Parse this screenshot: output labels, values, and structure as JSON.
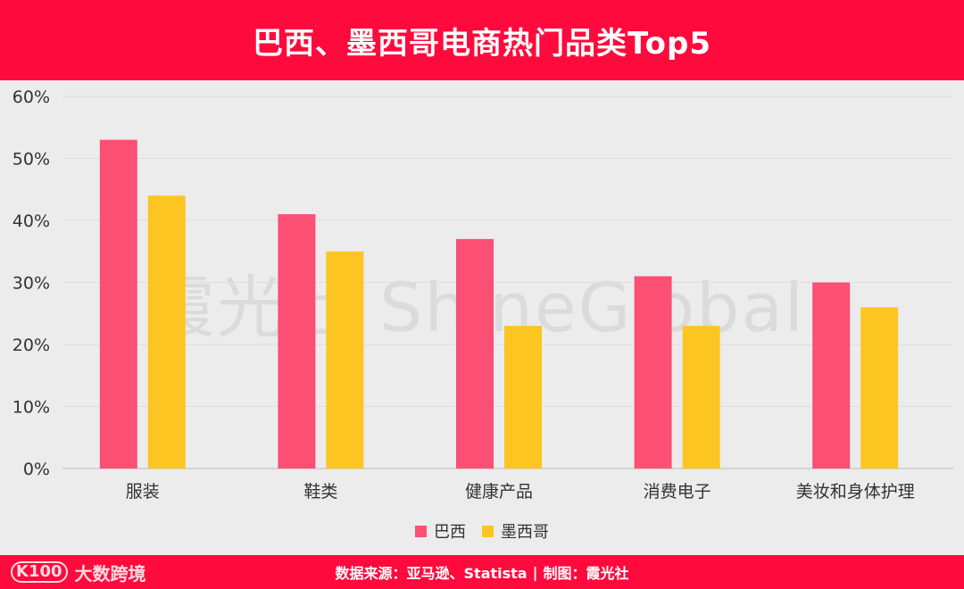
{
  "header": {
    "title": "巴西、墨西哥电商热门品类Top5"
  },
  "watermark": {
    "text": "霞光社 ShineGlobal"
  },
  "footer": {
    "logo_mark": "K100",
    "logo_text": "大数跨境",
    "source": "数据来源：亚马逊、Statista",
    "separator": "|",
    "credit": "制图：霞光社"
  },
  "colors": {
    "brand_red": "#ff0a3c",
    "series_brazil": "#fb4f74",
    "series_mexico": "#fcc522",
    "background": "#ececec"
  },
  "chart_data": {
    "type": "bar",
    "categories": [
      "服装",
      "鞋类",
      "健康产品",
      "消费电子",
      "美妆和身体护理"
    ],
    "series": [
      {
        "name": "巴西",
        "values": [
          53,
          41,
          37,
          31,
          30
        ]
      },
      {
        "name": "墨西哥",
        "values": [
          44,
          35,
          23,
          23,
          26
        ]
      }
    ],
    "ylim": [
      0,
      60
    ],
    "yticks": [
      "0%",
      "10%",
      "20%",
      "30%",
      "40%",
      "50%",
      "60%"
    ],
    "grid": true,
    "legend": "bottom-center"
  }
}
